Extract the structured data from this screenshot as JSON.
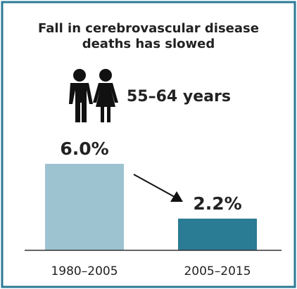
{
  "chart_data": {
    "type": "bar",
    "title": "Fall in cerebrovascular disease deaths has slowed",
    "annotation": "55–64 years",
    "categories": [
      "1980–2005",
      "2005–2015"
    ],
    "values": [
      6.0,
      2.2
    ],
    "value_labels": [
      "6.0%",
      "2.2%"
    ],
    "colors": [
      "#9dc3d1",
      "#2a7b94"
    ]
  }
}
